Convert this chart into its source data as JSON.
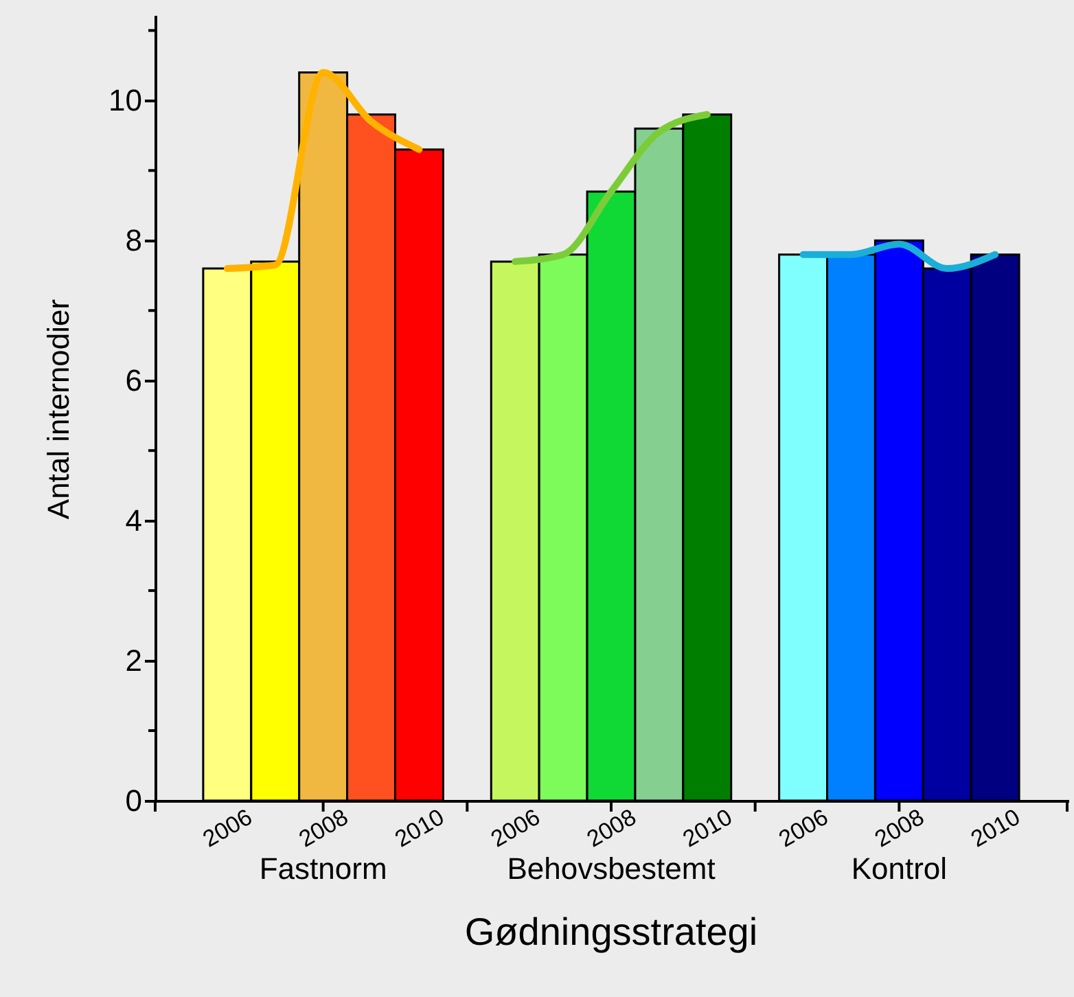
{
  "chart_data": {
    "type": "bar",
    "xlabel": "Gødningsstrategi",
    "ylabel": "Antal internodier",
    "categories": [
      null,
      "2006",
      null,
      "2008",
      null,
      "2010",
      null,
      "2006",
      null,
      "2008",
      null,
      "2010",
      null,
      "2006",
      null,
      "2008",
      null,
      "2010",
      null
    ],
    "series": [
      {
        "values": [
          null,
          7.6,
          7.7,
          10.4,
          9.8,
          9.3,
          null,
          7.7,
          7.8,
          8.7,
          9.6,
          9.8,
          null,
          7.8,
          7.8,
          8.0,
          7.6,
          7.8,
          null
        ],
        "colors": [
          null,
          "#ffff80",
          "#ffff00",
          "#f0b840",
          "#ff5020",
          "#ff0000",
          null,
          "#c6f65e",
          "#7dfb5a",
          "#10d936",
          "#85cf91",
          "#007e00",
          null,
          "#80ffff",
          "#0080ff",
          "#0000ff",
          "#0000a0",
          "#000080",
          null
        ]
      },
      {
        "type": "line",
        "color": "#ffb300",
        "values": [
          null,
          7.6,
          7.65,
          10.4,
          9.7,
          9.3,
          null,
          null,
          null,
          null,
          null,
          null,
          null,
          null,
          null,
          null,
          null,
          null,
          null
        ]
      },
      {
        "type": "line",
        "color": "#7ccc3a",
        "values": [
          null,
          null,
          null,
          null,
          null,
          null,
          null,
          7.7,
          7.8,
          8.7,
          9.55,
          9.8,
          null,
          null,
          null,
          null,
          null,
          null,
          null
        ]
      },
      {
        "type": "line",
        "color": "#1aaed8",
        "values": [
          null,
          null,
          null,
          null,
          null,
          null,
          null,
          null,
          null,
          null,
          null,
          null,
          null,
          7.8,
          7.8,
          7.95,
          7.6,
          7.8,
          null
        ]
      }
    ],
    "annotations": [
      "Fastnorm",
      "Behovsbestemt",
      "Kontrol"
    ],
    "ylim": [
      0,
      11.2
    ],
    "yticks": [
      0,
      2,
      4,
      6,
      8,
      10
    ],
    "grid": false,
    "line_style": "solid",
    "marker": "none"
  }
}
